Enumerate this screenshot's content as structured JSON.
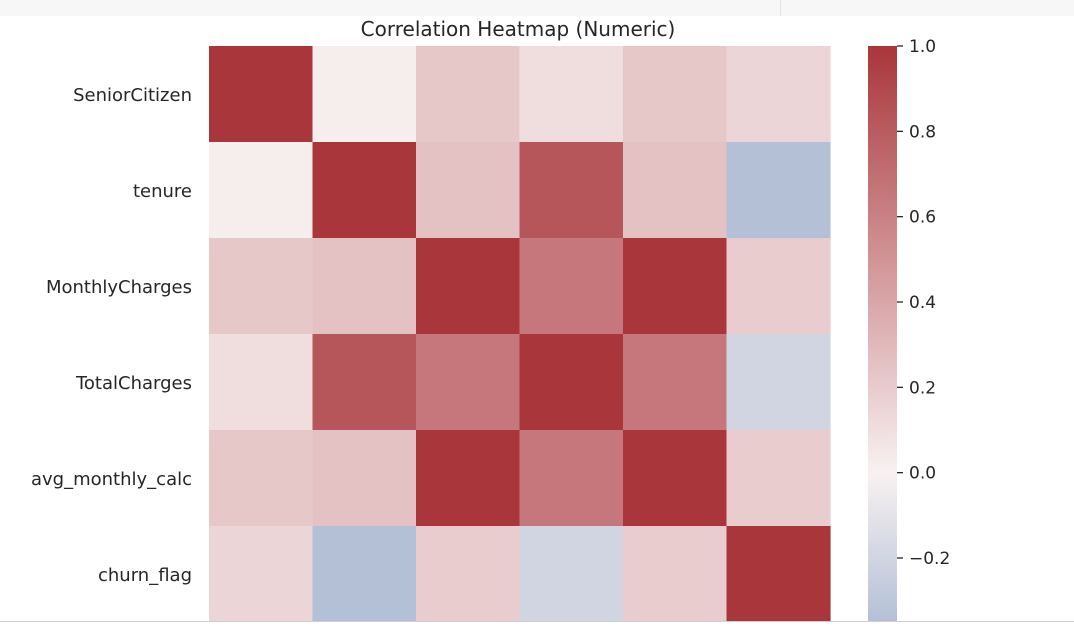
{
  "chart_data": {
    "type": "heatmap",
    "title": "Correlation Heatmap (Numeric)",
    "rows": [
      "SeniorCitizen",
      "tenure",
      "MonthlyCharges",
      "TotalCharges",
      "avg_monthly_calc",
      "churn_flag"
    ],
    "columns": [
      "SeniorCitizen",
      "tenure",
      "MonthlyCharges",
      "TotalCharges",
      "avg_monthly_calc",
      "churn_flag"
    ],
    "values": [
      [
        1.0,
        0.02,
        0.22,
        0.1,
        0.22,
        0.15
      ],
      [
        0.02,
        1.0,
        0.25,
        0.83,
        0.25,
        -0.35
      ],
      [
        0.22,
        0.25,
        1.0,
        0.65,
        1.0,
        0.19
      ],
      [
        0.1,
        0.83,
        0.65,
        1.0,
        0.65,
        -0.2
      ],
      [
        0.22,
        0.25,
        1.0,
        0.65,
        1.0,
        0.19
      ],
      [
        0.15,
        -0.35,
        0.19,
        -0.2,
        0.19,
        1.0
      ]
    ],
    "colorbar": {
      "min": -0.35,
      "max": 1.0,
      "ticks": [
        1.0,
        0.8,
        0.6,
        0.4,
        0.2,
        0.0,
        -0.2
      ],
      "tick_labels": [
        "1.0",
        "0.8",
        "0.6",
        "0.4",
        "0.2",
        "0.0",
        "−0.2"
      ]
    },
    "colors": {
      "low": "#b3c0d6",
      "mid": "#f8f1f1",
      "high": "#a9363b"
    }
  }
}
